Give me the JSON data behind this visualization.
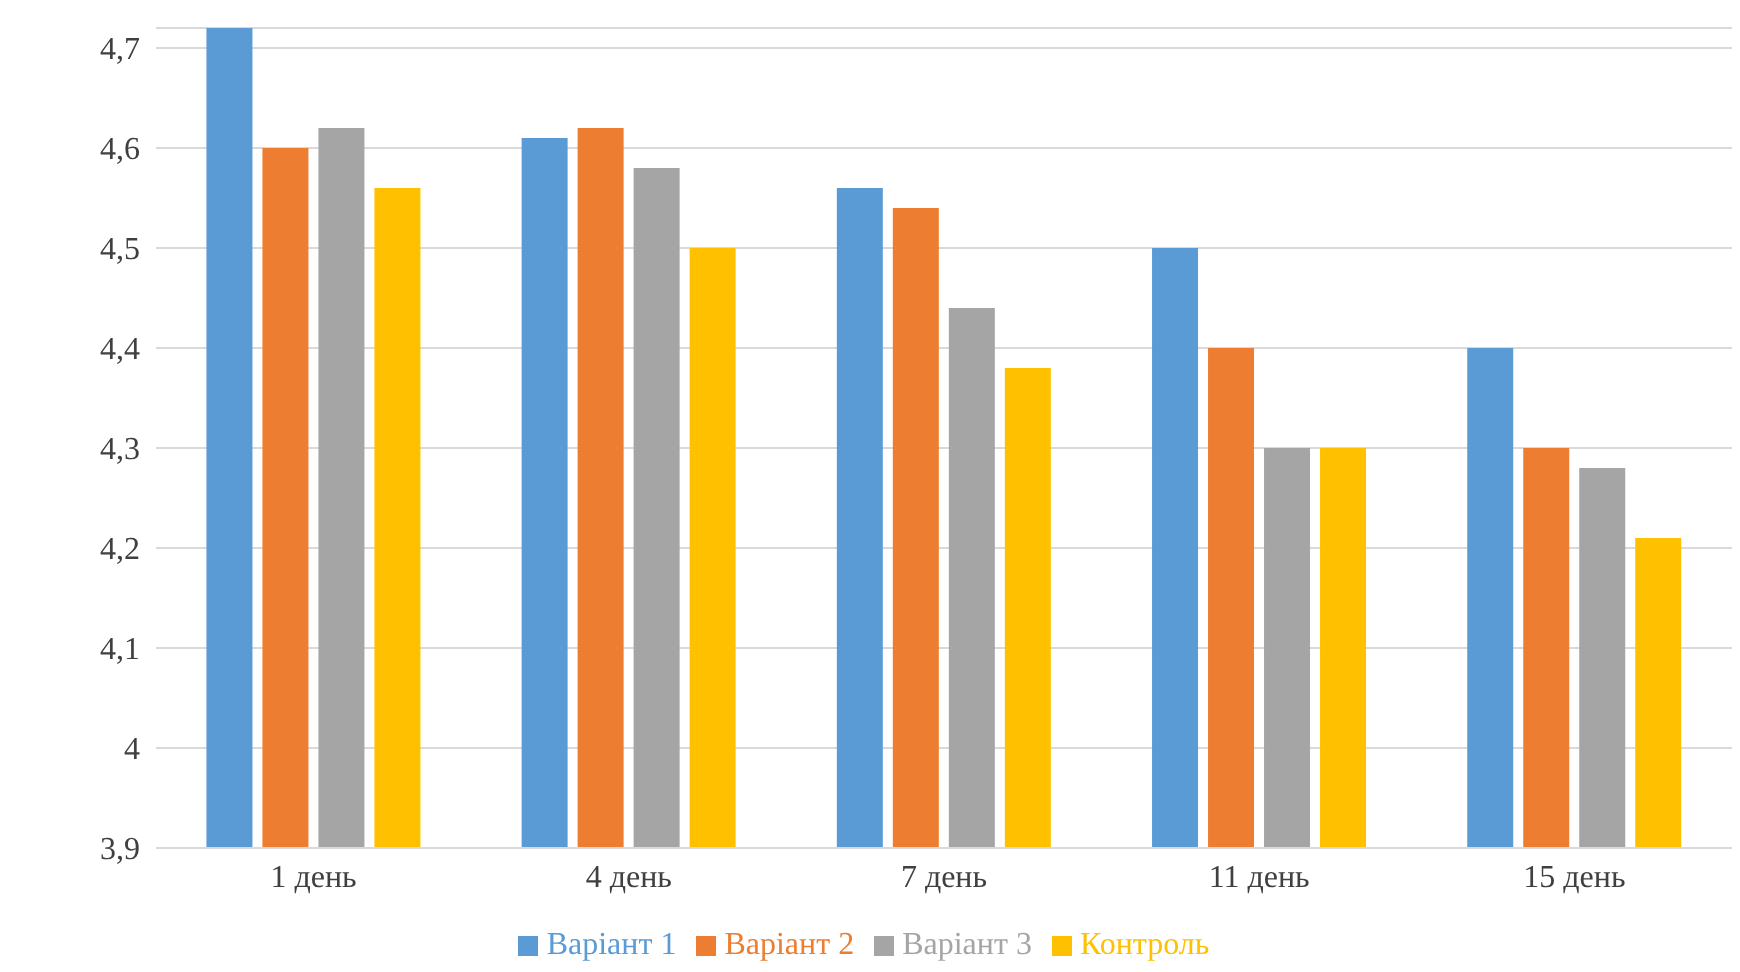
{
  "chart_data": {
    "type": "bar",
    "categories": [
      "1 день",
      "4 день",
      "7 день",
      "11 день",
      "15 день"
    ],
    "series": [
      {
        "name": "Варіант 1",
        "color": "#5b9bd5",
        "values": [
          4.72,
          4.61,
          4.56,
          4.5,
          4.4
        ]
      },
      {
        "name": "Варіант 2",
        "color": "#ed7d31",
        "values": [
          4.6,
          4.62,
          4.54,
          4.4,
          4.3
        ]
      },
      {
        "name": "Варіант 3",
        "color": "#a5a5a5",
        "values": [
          4.62,
          4.58,
          4.44,
          4.3,
          4.28
        ]
      },
      {
        "name": "Контроль",
        "color": "#ffc000",
        "values": [
          4.56,
          4.5,
          4.38,
          4.3,
          4.21
        ]
      }
    ],
    "ylim": [
      3.9,
      4.72
    ],
    "yticks": [
      {
        "value": 3.9,
        "label": "3,9"
      },
      4,
      {
        "value": 4.1,
        "label": "4,1"
      },
      {
        "value": 4.2,
        "label": "4,2"
      },
      {
        "value": 4.3,
        "label": "4,3"
      },
      {
        "value": 4.4,
        "label": "4,4"
      },
      {
        "value": 4.5,
        "label": "4,5"
      },
      {
        "value": 4.6,
        "label": "4,6"
      },
      {
        "value": 4.7,
        "label": "4,7"
      }
    ],
    "grid": "y",
    "legend": "bottom"
  }
}
